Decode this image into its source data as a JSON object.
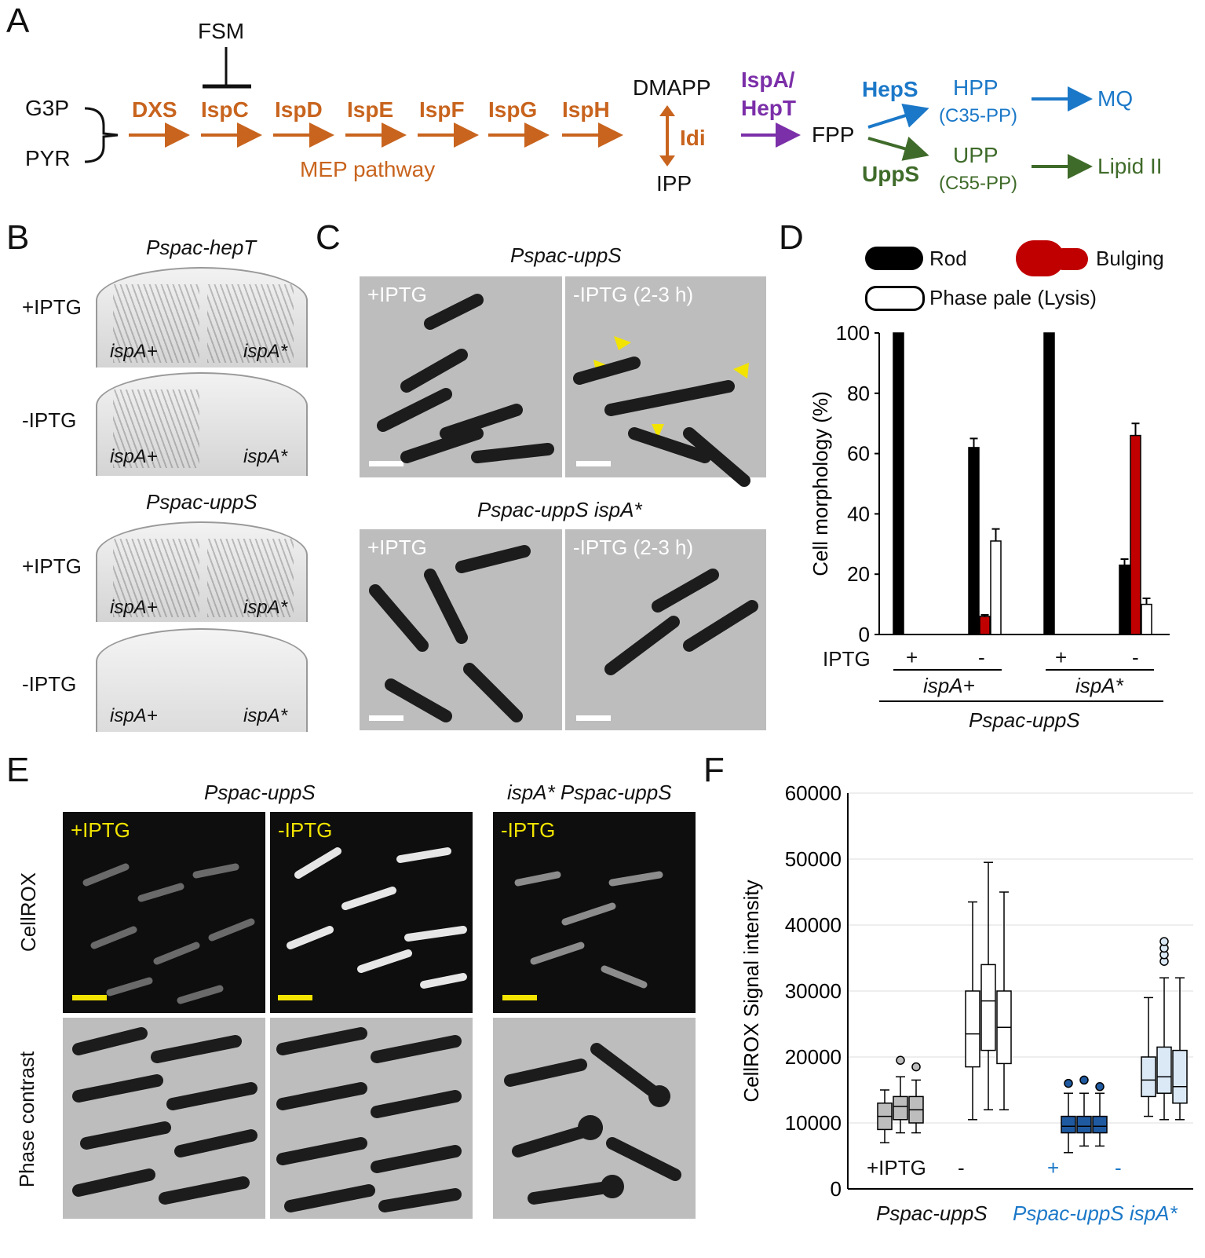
{
  "panels": {
    "a": "A",
    "b": "B",
    "c": "C",
    "d": "D",
    "e": "E",
    "f": "F"
  },
  "pathway": {
    "g3p": "G3P",
    "pyr": "PYR",
    "fsm": "FSM",
    "enzymes": [
      "DXS",
      "IspC",
      "IspD",
      "IspE",
      "IspF",
      "IspG",
      "IspH"
    ],
    "mep": "MEP pathway",
    "dmapp": "DMAPP",
    "ipp": "IPP",
    "idi": "Idi",
    "ispa_line1": "IspA/",
    "ispa_line2": "HepT",
    "fpp": "FPP",
    "heps": "HepS",
    "hpp": "HPP",
    "hpp_sub": "(C35-PP)",
    "mq": "MQ",
    "upps": "UppS",
    "upp": "UPP",
    "upp_sub": "(C55-PP)",
    "lipid": "Lipid II"
  },
  "plates": {
    "title1": "Pspac-hepT",
    "title2": "Pspac-uppS",
    "plus": "+IPTG",
    "minus": "-IPTG",
    "wt": "ispA+",
    "mut": "ispA*"
  },
  "micro_c": {
    "title1": "Pspac-uppS",
    "title2": "Pspac-uppS ispA*",
    "plus": "+IPTG",
    "minus": "-IPTG (2-3 h)"
  },
  "panel_d": {
    "legend": [
      "Rod",
      "Bulging",
      "Phase pale (Lysis)"
    ],
    "ylabel": "Cell morphology (%)",
    "iptg": "IPTG",
    "plus": "+",
    "minus": "-",
    "group1": "ispA+",
    "group2": "ispA*",
    "strain": "Pspac-uppS"
  },
  "panel_e": {
    "title1": "Pspac-uppS",
    "title2": "ispA* Pspac-uppS",
    "plus": "+IPTG",
    "minus": "-IPTG",
    "row1": "CellROX",
    "row2": "Phase contrast"
  },
  "panel_f": {
    "ylabel": "CellROX Signal intensity",
    "plus_label": "+IPTG",
    "minus": "-",
    "plus": "+",
    "strain1": "Pspac-uppS",
    "strain2": "Pspac-uppS ispA*"
  },
  "chart_data": [
    {
      "type": "bar",
      "categories": [
        "+ ispA+",
        "- ispA+",
        "+ ispA*",
        "- ispA*"
      ],
      "ylabel": "Cell morphology (%)",
      "ylim": [
        0,
        100
      ],
      "yticks": [
        0,
        20,
        40,
        60,
        80,
        100
      ],
      "series": [
        {
          "name": "Rod",
          "color": "#000000",
          "values": [
            100,
            62,
            100,
            23
          ],
          "errors": [
            0,
            3,
            0,
            2
          ]
        },
        {
          "name": "Bulging",
          "color": "#c00000",
          "values": [
            0,
            6,
            0,
            66
          ],
          "errors": [
            0,
            0.5,
            0,
            4
          ]
        },
        {
          "name": "Phase pale (Lysis)",
          "color": "#ffffff",
          "values": [
            0,
            31,
            0,
            10
          ],
          "errors": [
            0,
            4,
            0,
            2
          ]
        }
      ]
    },
    {
      "type": "box",
      "ylabel": "CellROX Signal intensity",
      "ylim": [
        0,
        60000
      ],
      "yticks": [
        0,
        10000,
        20000,
        30000,
        40000,
        50000,
        60000
      ],
      "groups": [
        {
          "strain": "Pspac-uppS",
          "iptg": "+IPTG",
          "color": "#bdbdbd",
          "boxes": [
            {
              "min": 7000,
              "q1": 9000,
              "median": 11000,
              "q3": 13000,
              "max": 15000,
              "outliers": []
            },
            {
              "min": 8500,
              "q1": 10500,
              "median": 12500,
              "q3": 14000,
              "max": 17000,
              "outliers": [
                19500
              ]
            },
            {
              "min": 8500,
              "q1": 10000,
              "median": 12000,
              "q3": 14000,
              "max": 16500,
              "outliers": [
                18500
              ]
            }
          ]
        },
        {
          "strain": "Pspac-uppS",
          "iptg": "-",
          "color": "#ffffff",
          "boxes": [
            {
              "min": 10500,
              "q1": 18500,
              "median": 23500,
              "q3": 30000,
              "max": 43500,
              "outliers": []
            },
            {
              "min": 12000,
              "q1": 21000,
              "median": 28500,
              "q3": 34000,
              "max": 49500,
              "outliers": []
            },
            {
              "min": 12000,
              "q1": 19000,
              "median": 24500,
              "q3": 30000,
              "max": 45000,
              "outliers": []
            }
          ]
        },
        {
          "strain": "Pspac-uppS ispA*",
          "iptg": "+",
          "color": "#1f5aa0",
          "boxes": [
            {
              "min": 5500,
              "q1": 8500,
              "median": 9500,
              "q3": 11000,
              "max": 14500,
              "outliers": [
                16000
              ]
            },
            {
              "min": 6500,
              "q1": 8500,
              "median": 9500,
              "q3": 11000,
              "max": 14500,
              "outliers": [
                16500
              ]
            },
            {
              "min": 6500,
              "q1": 8500,
              "median": 9500,
              "q3": 11000,
              "max": 14500,
              "outliers": [
                15500
              ]
            }
          ]
        },
        {
          "strain": "Pspac-uppS ispA*",
          "iptg": "-",
          "color": "#dbe9f6",
          "boxes": [
            {
              "min": 11000,
              "q1": 14000,
              "median": 16500,
              "q3": 20000,
              "max": 29000,
              "outliers": []
            },
            {
              "min": 10500,
              "q1": 14500,
              "median": 17000,
              "q3": 21500,
              "max": 32000,
              "outliers": [
                34500,
                35500,
                36500,
                37500
              ]
            },
            {
              "min": 10500,
              "q1": 13000,
              "median": 15500,
              "q3": 21000,
              "max": 32000,
              "outliers": []
            }
          ]
        }
      ]
    }
  ]
}
